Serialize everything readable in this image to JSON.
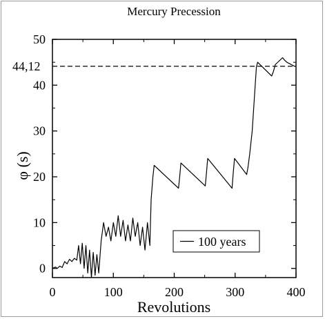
{
  "chart_data": {
    "type": "line",
    "title": "Mercury Precession",
    "xlabel": "Revolutions",
    "ylabel": "φ (s)",
    "xlim": [
      0,
      400
    ],
    "ylim": [
      -2,
      50
    ],
    "xticks": [
      "0",
      "100",
      "200",
      "300",
      "400"
    ],
    "yticks": [
      "0",
      "10",
      "20",
      "30",
      "40",
      "50"
    ],
    "reference_line": {
      "y": 44.12,
      "label": "44,12",
      "style": "dashed"
    },
    "legend": {
      "position": "bottom-right"
    },
    "series": [
      {
        "name": "100 years",
        "color": "#000000",
        "x": [
          0,
          5,
          8,
          12,
          16,
          20,
          24,
          28,
          32,
          36,
          40,
          43,
          46,
          49,
          52,
          55,
          58,
          61,
          64,
          67,
          70,
          73,
          76,
          80,
          84,
          88,
          92,
          96,
          100,
          104,
          108,
          112,
          116,
          120,
          124,
          128,
          132,
          136,
          140,
          144,
          148,
          152,
          156,
          160,
          162,
          165,
          167,
          207,
          209,
          211,
          251,
          253,
          255,
          295,
          297,
          299,
          319,
          321,
          324,
          328,
          331,
          335,
          337,
          360,
          363,
          366,
          378,
          381,
          385,
          398,
          400
        ],
        "y": [
          0,
          0.3,
          0,
          0.5,
          0.2,
          1.5,
          1,
          2,
          1.5,
          2.2,
          1.8,
          5,
          1,
          5.5,
          0,
          5,
          -1,
          4,
          -2,
          3.5,
          -1.5,
          3,
          -1,
          6,
          10,
          7,
          9,
          6,
          10,
          7,
          11.5,
          7,
          10.5,
          6,
          9.5,
          6,
          11,
          7,
          10,
          5,
          9,
          4,
          10,
          5,
          15,
          20,
          22.5,
          17.5,
          20,
          23,
          18,
          21,
          24,
          17.5,
          21,
          24,
          20.5,
          22,
          25,
          30,
          36,
          44,
          45,
          42,
          43,
          44.5,
          46,
          45.5,
          45,
          44.1,
          44.12
        ]
      }
    ]
  }
}
